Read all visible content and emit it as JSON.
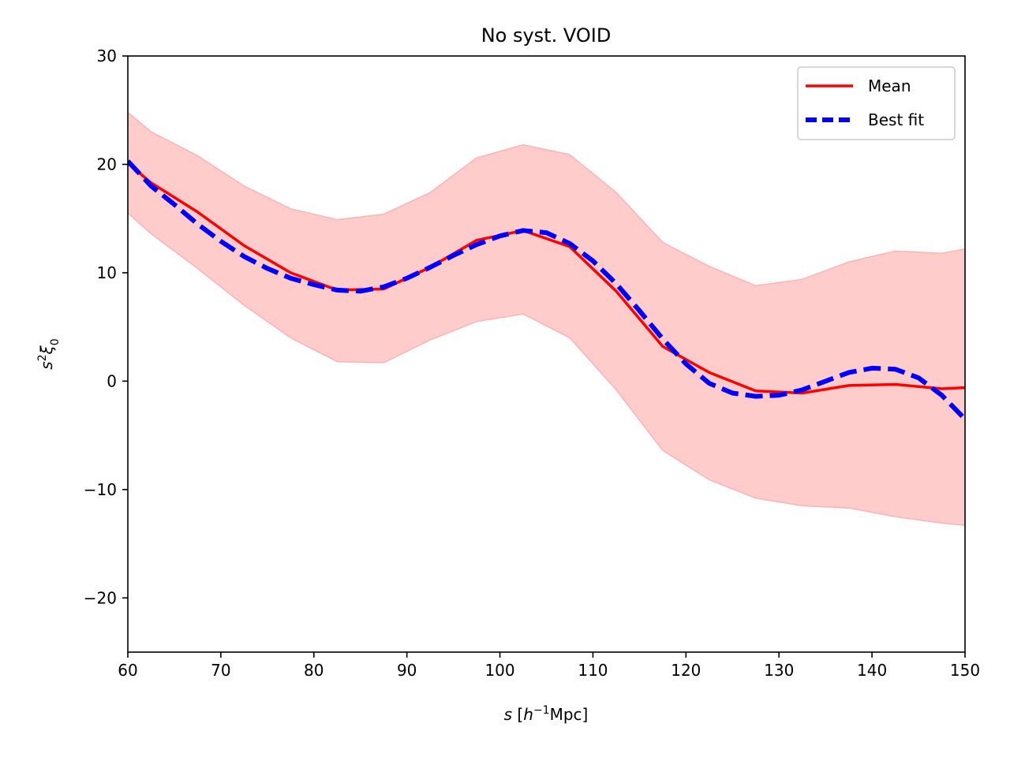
{
  "chart_data": {
    "type": "line",
    "title": "No syst. VOID",
    "xlabel": "s [h⁻¹Mpc]",
    "ylabel": "s²ξ₀",
    "xlim": [
      60,
      150
    ],
    "ylim": [
      -25,
      30
    ],
    "xticks": [
      60,
      70,
      80,
      90,
      100,
      110,
      120,
      130,
      140,
      150
    ],
    "yticks": [
      -20,
      -10,
      0,
      10,
      20,
      30
    ],
    "ytick_labels": [
      "−20",
      "−10",
      "0",
      "10",
      "20",
      "30"
    ],
    "legend_position": "top-right",
    "grid": false,
    "band": {
      "color": "#ffcccc",
      "edge_color": "#ffb3b3",
      "x": [
        60,
        62.5,
        67.5,
        72.5,
        77.5,
        82.5,
        87.5,
        92.5,
        97.5,
        102.5,
        107.5,
        112.5,
        117.5,
        122.5,
        127.5,
        132.5,
        137.5,
        142.5,
        147.5,
        150
      ],
      "upper": [
        24.8,
        23.0,
        20.8,
        18.0,
        15.9,
        14.9,
        15.4,
        17.4,
        20.6,
        21.8,
        20.9,
        17.4,
        12.8,
        10.6,
        8.8,
        9.4,
        11.0,
        12.0,
        11.8,
        12.2
      ],
      "lower": [
        15.5,
        13.6,
        10.4,
        7.0,
        4.0,
        1.8,
        1.7,
        3.8,
        5.5,
        6.2,
        4.0,
        -0.8,
        -6.4,
        -9.1,
        -10.8,
        -11.5,
        -11.7,
        -12.5,
        -13.1,
        -13.3
      ]
    },
    "series": [
      {
        "name": "Mean",
        "color": "#ff0000",
        "style": "solid",
        "x": [
          60,
          62.5,
          67.5,
          72.5,
          77.5,
          82.5,
          87.5,
          92.5,
          97.5,
          102.5,
          107.5,
          112.5,
          117.5,
          122.5,
          127.5,
          132.5,
          137.5,
          142.5,
          147.5,
          150
        ],
        "y": [
          20.1,
          18.3,
          15.6,
          12.5,
          10.0,
          8.4,
          8.5,
          10.5,
          13.0,
          13.9,
          12.4,
          8.3,
          3.2,
          0.8,
          -0.9,
          -1.1,
          -0.4,
          -0.3,
          -0.7,
          -0.6
        ]
      },
      {
        "name": "Best fit",
        "color": "#0000ff",
        "style": "dashed",
        "x": [
          60,
          62.5,
          65,
          67.5,
          70,
          72.5,
          75,
          77.5,
          80,
          82.5,
          85,
          87.5,
          90,
          92.5,
          95,
          97.5,
          100,
          102.5,
          105,
          107.5,
          110,
          112.5,
          115,
          117.5,
          120,
          122.5,
          125,
          127.5,
          130,
          132.5,
          135,
          137.5,
          140,
          142.5,
          145,
          147.5,
          150
        ],
        "y": [
          20.3,
          18.0,
          16.3,
          14.5,
          12.9,
          11.5,
          10.4,
          9.5,
          8.9,
          8.4,
          8.3,
          8.7,
          9.5,
          10.5,
          11.6,
          12.6,
          13.4,
          13.9,
          13.7,
          12.7,
          11.1,
          9.0,
          6.5,
          3.9,
          1.6,
          -0.2,
          -1.1,
          -1.4,
          -1.3,
          -0.8,
          0.0,
          0.8,
          1.2,
          1.1,
          0.3,
          -1.3,
          -3.5
        ]
      }
    ]
  }
}
